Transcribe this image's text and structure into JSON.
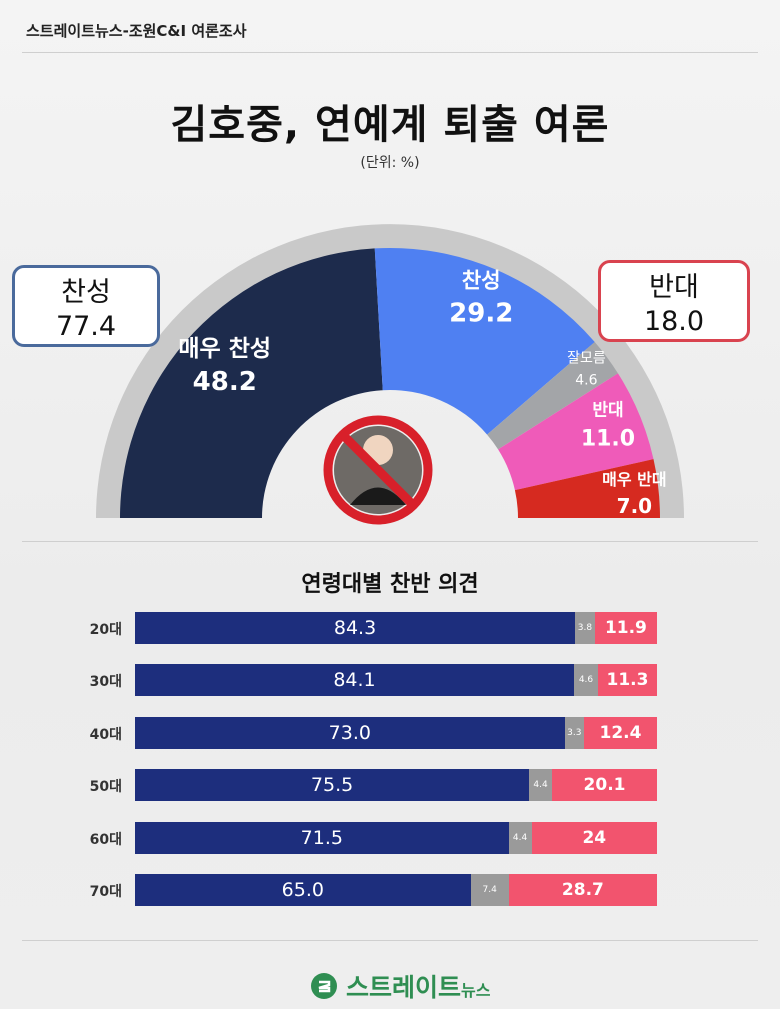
{
  "source": "스트레이트뉴스-조원C&I 여론조사",
  "title": "김호중, 연예계 퇴출 여론",
  "unit": "(단위: %)",
  "callouts": {
    "left": {
      "label": "찬성",
      "value": "77.4"
    },
    "right": {
      "label": "반대",
      "value": "18.0"
    }
  },
  "subtitle": "연령대별 찬반 의견",
  "logo": {
    "text": "스트레이트",
    "sub": "뉴스"
  },
  "colors": {
    "strong_agree": "#1d2b4c",
    "agree": "#4f80f2",
    "unknown": "#a3a5a8",
    "disagree": "#ef5bb9",
    "strong_disagree": "#d62a20",
    "age_agree": "#1d2e7d",
    "age_unknown": "#9a9a9a",
    "age_disagree": "#f2546e"
  },
  "chart_data": [
    {
      "type": "pie",
      "style": "semicircle",
      "slices": [
        {
          "label": "매우 찬성",
          "value": 48.2
        },
        {
          "label": "찬성",
          "value": 29.2
        },
        {
          "label": "잘모름",
          "value": 4.6
        },
        {
          "label": "반대",
          "value": 11.0
        },
        {
          "label": "매우 반대",
          "value": 7.0
        }
      ],
      "value_labels": [
        "48.2",
        "29.2",
        "4.6",
        "11.0",
        "7.0"
      ]
    },
    {
      "type": "bar",
      "orientation": "horizontal",
      "stacked": true,
      "categories": [
        "20대",
        "30대",
        "40대",
        "50대",
        "60대",
        "70대"
      ],
      "series": [
        {
          "values": [
            84.3,
            84.1,
            73.0,
            75.5,
            71.5,
            65.0
          ],
          "labels": [
            "84.3",
            "84.1",
            "73.0",
            "75.5",
            "71.5",
            "65.0"
          ]
        },
        {
          "values": [
            3.8,
            4.6,
            3.3,
            4.4,
            4.4,
            7.4
          ],
          "labels": [
            "3.8",
            "4.6",
            "3.3",
            "4.4",
            "4.4",
            "7.4"
          ]
        },
        {
          "values": [
            11.9,
            11.3,
            12.4,
            20.1,
            24,
            28.7
          ],
          "labels": [
            "11.9",
            "11.3",
            "12.4",
            "20.1",
            "24",
            "28.7"
          ]
        }
      ]
    }
  ]
}
